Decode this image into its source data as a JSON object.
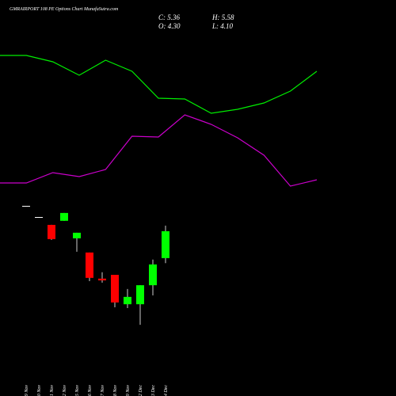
{
  "title": "GMRAIRPORT 108 PE Options Chart MunafaSutra.com",
  "ohlc_labels": [
    "C: 5.36",
    "H: 5.58",
    "O: 4.30",
    "L: 4.10"
  ],
  "chart_data": [
    {
      "type": "line",
      "ylim": [
        0,
        200
      ],
      "series": [
        {
          "color": "#00ee00",
          "values": [
            180,
            180,
            172,
            155,
            174,
            160,
            126,
            125,
            107,
            112,
            120,
            135,
            160
          ]
        },
        {
          "color": "#cc00cc",
          "values": [
            19,
            19,
            32,
            27,
            36,
            78,
            77,
            105,
            93,
            76,
            54,
            15,
            23
          ]
        }
      ]
    },
    {
      "type": "candlestick",
      "categories": [
        "19 Nov",
        "20 Nov",
        "21 Nov",
        "22 Nov",
        "25 Nov",
        "26 Nov",
        "27 Nov",
        "28 Nov",
        "29 Nov",
        "02 Dec",
        "03 Dec",
        "04 Dec"
      ],
      "open": [
        6.36,
        5.92,
        5.61,
        5.77,
        5.08,
        4.52,
        3.49,
        3.64,
        2.48,
        2.48,
        3.23,
        4.3
      ],
      "high": [
        6.36,
        5.92,
        5.61,
        6.08,
        5.3,
        4.52,
        3.74,
        3.64,
        3.08,
        3.23,
        4.24,
        5.58
      ],
      "low": [
        6.36,
        5.92,
        5.02,
        5.77,
        4.55,
        3.39,
        3.33,
        2.36,
        2.33,
        1.67,
        2.83,
        4.1
      ],
      "close": [
        6.36,
        5.92,
        5.05,
        6.08,
        5.3,
        3.52,
        3.42,
        2.55,
        2.77,
        3.23,
        4.05,
        5.36
      ],
      "up_color": "#00ff00",
      "down_color": "#ff0000",
      "flat_color": "#ffffff",
      "ylim": [
        1.36,
        6.67
      ]
    }
  ]
}
